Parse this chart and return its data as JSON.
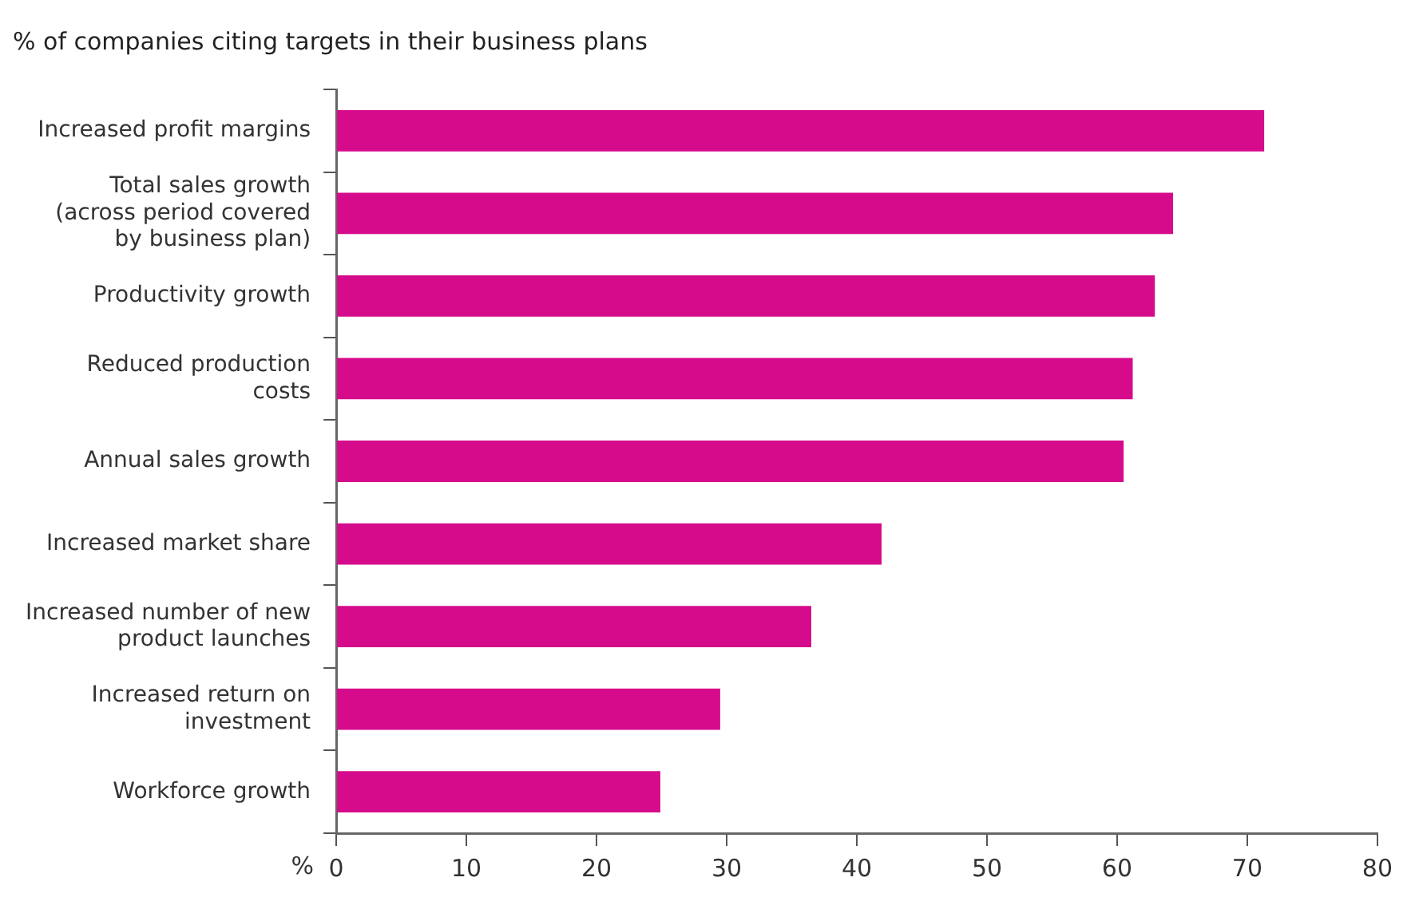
{
  "chart_data": {
    "type": "bar",
    "orientation": "horizontal",
    "title": "% of companies citing targets in their business plans",
    "xlabel": "%",
    "categories": [
      "Increased profit margins",
      "Total sales growth (across period covered by business plan)",
      "Productivity growth",
      "Reduced production costs",
      "Annual sales growth",
      "Increased market share",
      "Increased number of new product launches",
      "Increased return on investment",
      "Workforce growth"
    ],
    "values": [
      71.3,
      64.3,
      62.9,
      61.2,
      60.5,
      41.9,
      36.5,
      29.5,
      24.9
    ],
    "color": "#d60b8c",
    "xlim": [
      0,
      80
    ],
    "xticks": [
      0,
      10,
      20,
      30,
      40,
      50,
      60,
      70,
      80
    ],
    "grid": false,
    "legend": false
  }
}
